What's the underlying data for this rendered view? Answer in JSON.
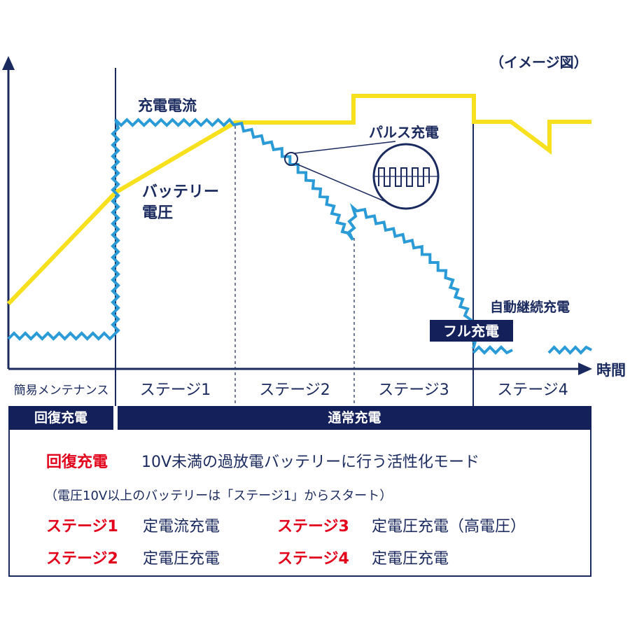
{
  "image_note": "（イメージ図）",
  "axis": {
    "time_label": "時間"
  },
  "labels": {
    "current": "充電電流",
    "voltage_line1": "バッテリー",
    "voltage_line2": "電圧",
    "pulse": "パルス充電",
    "auto_continue": "自動継続充電",
    "full_charge": "フル充電"
  },
  "stages": [
    "簡易メンテナンス",
    "ステージ1",
    "ステージ2",
    "ステージ3",
    "ステージ4"
  ],
  "modes": {
    "recovery": "回復充電",
    "normal": "通常充電"
  },
  "legend": {
    "recovery_title": "回復充電",
    "recovery_desc": "10V未満の過放電バッテリーに行う活性化モード",
    "note": "（電圧10V以上のバッテリーは「ステージ1」からスタート）",
    "items": [
      {
        "stage": "ステージ1",
        "desc": "定電流充電"
      },
      {
        "stage": "ステージ2",
        "desc": "定電圧充電"
      },
      {
        "stage": "ステージ3",
        "desc": "定電圧充電（高電圧）"
      },
      {
        "stage": "ステージ4",
        "desc": "定電圧充電"
      }
    ]
  },
  "colors": {
    "voltage": "#f7e11e",
    "current": "#2b9bd8",
    "navy": "#14205a",
    "red": "#e3001b"
  }
}
